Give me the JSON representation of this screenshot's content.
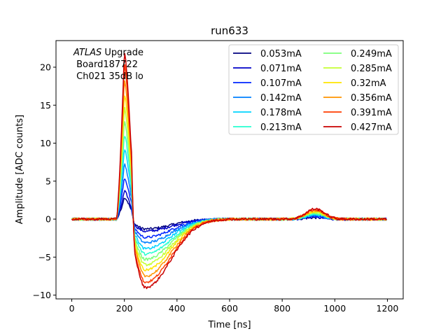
{
  "chart_data": {
    "type": "line",
    "title": "run633",
    "xlabel": "Time [ns]",
    "ylabel": "Amplitude [ADC counts]",
    "xlim": [
      -60,
      1260
    ],
    "ylim": [
      -10.5,
      23.5
    ],
    "x_ticks": [
      0,
      200,
      400,
      600,
      800,
      1000,
      1200
    ],
    "y_ticks": [
      -10,
      -5,
      0,
      5,
      10,
      15,
      20
    ],
    "x_tick_labels": [
      "0",
      "200",
      "400",
      "600",
      "800",
      "1000",
      "1200"
    ],
    "y_tick_labels": [
      "−10",
      "−5",
      "0",
      "5",
      "10",
      "15",
      "20"
    ],
    "grid": false,
    "legend": {
      "position": "top-right",
      "columns": 2
    },
    "annotation": {
      "italic": "ATLAS",
      "line1_rest": " Upgrade",
      "line2": " Board187722",
      "line3": " Ch021 35dB lo"
    },
    "pulse_shape_note": "",
    "series": [
      {
        "name": "0.053mA",
        "color": "#00007f",
        "peak": 2.9,
        "undershoot": -1.3,
        "bump": 0.2
      },
      {
        "name": "0.071mA",
        "color": "#0000c8",
        "peak": 3.7,
        "undershoot": -1.6,
        "bump": 0.3
      },
      {
        "name": "0.107mA",
        "color": "#0026ff",
        "peak": 5.4,
        "undershoot": -2.4,
        "bump": 0.4
      },
      {
        "name": "0.142mA",
        "color": "#0080ff",
        "peak": 7.3,
        "undershoot": -3.1,
        "bump": 0.5
      },
      {
        "name": "0.178mA",
        "color": "#00d4ff",
        "peak": 9.3,
        "undershoot": -3.9,
        "bump": 0.6
      },
      {
        "name": "0.213mA",
        "color": "#26ffd0",
        "peak": 11.2,
        "undershoot": -4.6,
        "bump": 0.7
      },
      {
        "name": "0.249mA",
        "color": "#7cff7a",
        "peak": 13.0,
        "undershoot": -5.3,
        "bump": 0.8
      },
      {
        "name": "0.285mA",
        "color": "#c4ff33",
        "peak": 14.8,
        "undershoot": -6.0,
        "bump": 0.9
      },
      {
        "name": "0.32mA",
        "color": "#ffe500",
        "peak": 16.6,
        "undershoot": -6.7,
        "bump": 1.0
      },
      {
        "name": "0.356mA",
        "color": "#ff9400",
        "peak": 18.6,
        "undershoot": -7.5,
        "bump": 1.1
      },
      {
        "name": "0.391mA",
        "color": "#ff3b00",
        "peak": 20.6,
        "undershoot": -8.3,
        "bump": 1.25
      },
      {
        "name": "0.427mA",
        "color": "#c80000",
        "peak": 22.3,
        "undershoot": -9.0,
        "bump": 1.35
      }
    ]
  }
}
